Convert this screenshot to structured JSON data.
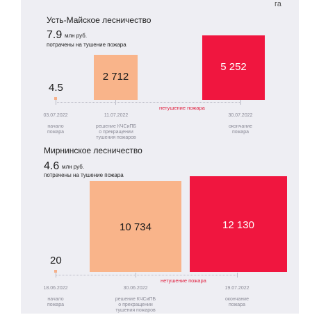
{
  "unit_label": "га",
  "chart_data": [
    {
      "type": "bar",
      "title": "Усть-Майское лесничество",
      "cost": {
        "value": "7.9",
        "unit": "млн руб.",
        "desc": "потрачены на тушение пожара"
      },
      "values": [
        4.5,
        2712,
        5252
      ],
      "value_labels": [
        "4.5",
        "2 712",
        "5 252"
      ],
      "categories": [
        {
          "date": "03.07.2022",
          "label": "начало\nпожара"
        },
        {
          "date": "11.07.2022",
          "label": "решение КЧСиПБ\nо прекращении\nтушения пожаров"
        },
        {
          "date": "30.07.2022",
          "label": "окончание\nпожара"
        }
      ],
      "note": "нетушение пожара",
      "colors": {
        "start": "#f5b08a",
        "decision": "#f9b48a",
        "end": "#f0163f"
      }
    },
    {
      "type": "bar",
      "title": "Мирнинское лесничество",
      "cost": {
        "value": "4.6",
        "unit": "млн руб.",
        "desc": "потрачены на тушение пожара"
      },
      "values": [
        20,
        10734,
        12130
      ],
      "value_labels": [
        "20",
        "10 734",
        "12 130"
      ],
      "categories": [
        {
          "date": "18.06.2022",
          "label": "начало\nпожара"
        },
        {
          "date": "30.06.2022",
          "label": "решение КЧСиПБ\nо прекращении\nтушения пожаров"
        },
        {
          "date": "19.07.2022",
          "label": "окончание\nпожара"
        }
      ],
      "note": "нетушение пожара",
      "colors": {
        "start": "#f5b08a",
        "decision": "#f9b48a",
        "end": "#f0163f"
      }
    }
  ]
}
